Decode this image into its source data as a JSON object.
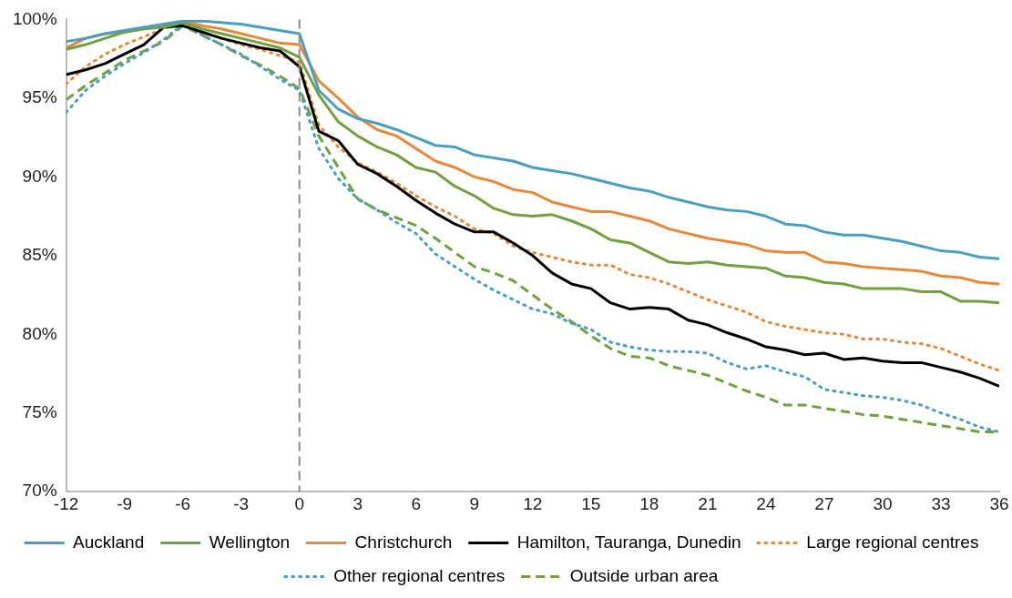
{
  "chart_data": {
    "type": "line",
    "x": [
      -12,
      -11,
      -10,
      -9,
      -8,
      -7,
      -6,
      -5,
      -4,
      -3,
      -2,
      -1,
      0,
      1,
      2,
      3,
      4,
      5,
      6,
      7,
      8,
      9,
      10,
      11,
      12,
      13,
      14,
      15,
      16,
      17,
      18,
      19,
      20,
      21,
      22,
      23,
      24,
      25,
      26,
      27,
      28,
      29,
      30,
      31,
      32,
      33,
      34,
      35,
      36
    ],
    "xlim": [
      -12,
      36
    ],
    "xticks": [
      -12,
      -9,
      -6,
      -3,
      0,
      3,
      6,
      9,
      12,
      15,
      18,
      21,
      24,
      27,
      30,
      33,
      36
    ],
    "ylim": [
      70,
      100
    ],
    "yticks": [
      {
        "value": 70,
        "label": "70%"
      },
      {
        "value": 75,
        "label": "75%"
      },
      {
        "value": 80,
        "label": "80%"
      },
      {
        "value": 85,
        "label": "85%"
      },
      {
        "value": 90,
        "label": "90%"
      },
      {
        "value": 95,
        "label": "95%"
      },
      {
        "value": 100,
        "label": "100%"
      }
    ],
    "grid": false,
    "legend": "bottom",
    "marker": "none",
    "ref_lines": [
      {
        "axis": "x",
        "value": 0,
        "color": "#8c8c8c",
        "line_style": "dashed"
      }
    ],
    "series": [
      {
        "name": "Auckland",
        "color": "#4a9fc0",
        "line_style": "solid",
        "values": [
          98.6,
          98.8,
          99.1,
          99.3,
          99.5,
          99.7,
          99.9,
          99.9,
          99.8,
          99.7,
          99.5,
          99.3,
          99.1,
          95.5,
          94.3,
          93.7,
          93.4,
          93.0,
          92.5,
          92.0,
          91.9,
          91.4,
          91.2,
          91.0,
          90.6,
          90.4,
          90.2,
          89.9,
          89.6,
          89.3,
          89.1,
          88.7,
          88.4,
          88.1,
          87.9,
          87.8,
          87.5,
          87.0,
          86.9,
          86.5,
          86.3,
          86.3,
          86.1,
          85.9,
          85.6,
          85.3,
          85.2,
          84.9,
          84.8
        ]
      },
      {
        "name": "Wellington",
        "color": "#72a03e",
        "line_style": "solid",
        "values": [
          98.1,
          98.4,
          98.8,
          99.2,
          99.4,
          99.5,
          99.8,
          99.4,
          99.1,
          98.8,
          98.5,
          98.2,
          97.6,
          95.2,
          93.5,
          92.6,
          91.9,
          91.4,
          90.6,
          90.3,
          89.4,
          88.8,
          88.0,
          87.6,
          87.5,
          87.6,
          87.2,
          86.7,
          86.0,
          85.8,
          85.2,
          84.6,
          84.5,
          84.6,
          84.4,
          84.3,
          84.2,
          83.7,
          83.6,
          83.3,
          83.2,
          82.9,
          82.9,
          82.9,
          82.7,
          82.7,
          82.1,
          82.1,
          82.0
        ]
      },
      {
        "name": "Christchurch",
        "color": "#e8893a",
        "line_style": "solid",
        "values": [
          98.2,
          98.8,
          99.1,
          99.2,
          99.4,
          99.6,
          99.9,
          99.6,
          99.4,
          99.1,
          98.8,
          98.5,
          98.4,
          96.1,
          95.0,
          93.8,
          93.0,
          92.6,
          91.8,
          91.0,
          90.6,
          90.0,
          89.7,
          89.2,
          89.0,
          88.4,
          88.1,
          87.8,
          87.8,
          87.5,
          87.2,
          86.7,
          86.4,
          86.1,
          85.9,
          85.7,
          85.3,
          85.2,
          85.2,
          84.6,
          84.5,
          84.3,
          84.2,
          84.1,
          84.0,
          83.7,
          83.6,
          83.3,
          83.2
        ]
      },
      {
        "name": "Hamilton, Tauranga, Dunedin",
        "color": "#000000",
        "line_style": "solid",
        "values": [
          96.5,
          96.8,
          97.2,
          97.8,
          98.4,
          99.5,
          99.6,
          99.2,
          98.8,
          98.5,
          98.2,
          98.0,
          97.0,
          92.9,
          92.3,
          90.8,
          90.2,
          89.4,
          88.5,
          87.7,
          87.0,
          86.5,
          86.5,
          85.8,
          85.0,
          83.9,
          83.2,
          82.9,
          82.0,
          81.6,
          81.7,
          81.6,
          80.9,
          80.6,
          80.1,
          79.7,
          79.2,
          79.0,
          78.7,
          78.8,
          78.4,
          78.5,
          78.3,
          78.2,
          78.2,
          77.9,
          77.6,
          77.2,
          76.7
        ]
      },
      {
        "name": "Large regional centres",
        "color": "#e8893a",
        "line_style": "dotted",
        "values": [
          95.9,
          97.0,
          97.8,
          98.4,
          98.9,
          99.4,
          99.8,
          99.2,
          98.8,
          98.4,
          98.1,
          97.7,
          97.3,
          93.3,
          91.9,
          90.9,
          90.3,
          89.6,
          88.8,
          88.1,
          87.5,
          86.7,
          86.4,
          85.6,
          85.2,
          84.9,
          84.6,
          84.4,
          84.4,
          83.8,
          83.6,
          83.2,
          82.7,
          82.2,
          81.8,
          81.4,
          80.8,
          80.5,
          80.3,
          80.1,
          80.0,
          79.7,
          79.7,
          79.5,
          79.4,
          79.1,
          78.6,
          78.1,
          77.7
        ]
      },
      {
        "name": "Other regional centres",
        "color": "#4a9fc0",
        "line_style": "dotted",
        "values": [
          94.1,
          95.5,
          96.4,
          97.2,
          97.9,
          98.7,
          99.7,
          99.0,
          98.4,
          97.8,
          97.0,
          96.2,
          95.5,
          91.8,
          89.9,
          88.6,
          87.9,
          87.1,
          86.4,
          85.1,
          84.3,
          83.5,
          82.8,
          82.2,
          81.6,
          81.3,
          80.7,
          80.3,
          79.5,
          79.2,
          79.0,
          78.9,
          78.9,
          78.8,
          78.2,
          77.8,
          78.0,
          77.6,
          77.3,
          76.5,
          76.3,
          76.1,
          76.0,
          75.8,
          75.5,
          75.0,
          74.6,
          74.1,
          73.8
        ]
      },
      {
        "name": "Outside urban area",
        "color": "#72a03e",
        "line_style": "dashed",
        "values": [
          94.9,
          95.8,
          96.6,
          97.4,
          98.0,
          98.6,
          99.6,
          99.0,
          98.4,
          97.7,
          97.1,
          96.4,
          95.6,
          92.6,
          90.6,
          88.6,
          87.9,
          87.4,
          86.9,
          86.1,
          85.2,
          84.3,
          83.9,
          83.4,
          82.5,
          81.6,
          80.8,
          79.9,
          79.1,
          78.6,
          78.5,
          78.0,
          77.7,
          77.4,
          76.9,
          76.4,
          76.0,
          75.5,
          75.5,
          75.3,
          75.1,
          74.9,
          74.8,
          74.6,
          74.4,
          74.2,
          74.0,
          73.8,
          73.8
        ]
      }
    ]
  }
}
